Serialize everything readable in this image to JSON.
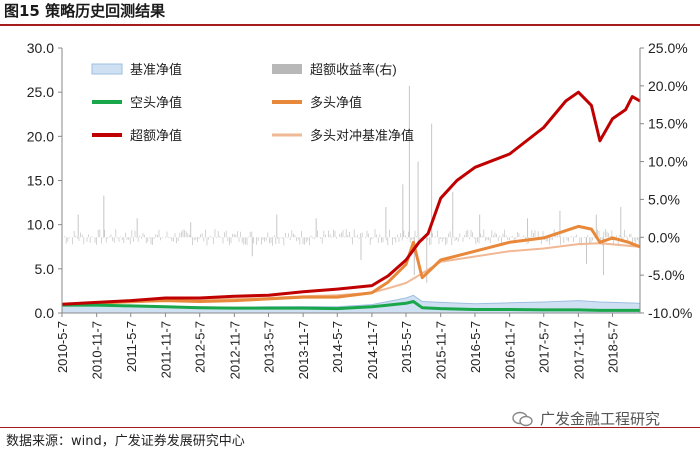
{
  "figure_title": "图15 策略历史回测结果",
  "source_note": "数据来源：wind，广发证券发展研究中心",
  "watermark": "广发金融工程研究",
  "chart_data": {
    "type": "line",
    "title": "",
    "left_axis": {
      "min": 0,
      "max": 30,
      "ticks": [
        "0.0",
        "5.0",
        "10.0",
        "15.0",
        "20.0",
        "25.0",
        "30.0"
      ]
    },
    "right_axis": {
      "min": -10,
      "max": 25,
      "ticks": [
        "-10.0%",
        "-5.0%",
        "0.0%",
        "5.0%",
        "10.0%",
        "15.0%",
        "20.0%",
        "25.0%"
      ]
    },
    "x_tick_labels": [
      "2010-5-7",
      "2010-11-7",
      "2011-5-7",
      "2011-11-7",
      "2012-5-7",
      "2012-11-7",
      "2013-5-7",
      "2013-11-7",
      "2014-5-7",
      "2014-11-7",
      "2015-5-7",
      "2015-11-7",
      "2016-5-7",
      "2016-11-7",
      "2017-5-7",
      "2017-11-7",
      "2018-5-7"
    ],
    "x_range": [
      "2010-05-07",
      "2018-09-30"
    ],
    "legend": [
      "基准净值",
      "超额收益率(右)",
      "空头净值",
      "多头净值",
      "超额净值",
      "多头对冲基准净值"
    ],
    "colors": {
      "benchmark": "#cfe0f2",
      "benchmark_edge": "#9dbfe0",
      "excess_return": "#b8b8b8",
      "short": "#1aa64a",
      "long": "#e8883a",
      "excess": "#c00000",
      "long_hedge": "#f0b894",
      "axis": "#888888"
    },
    "series": [
      {
        "name": "超额净值",
        "key": "excess",
        "axis": "left",
        "points": [
          [
            "2010-05-07",
            1.0
          ],
          [
            "2010-11-07",
            1.2
          ],
          [
            "2011-05-07",
            1.4
          ],
          [
            "2011-11-07",
            1.7
          ],
          [
            "2012-05-07",
            1.7
          ],
          [
            "2012-11-07",
            1.9
          ],
          [
            "2013-05-07",
            2.0
          ],
          [
            "2013-11-07",
            2.4
          ],
          [
            "2014-05-07",
            2.7
          ],
          [
            "2014-11-07",
            3.1
          ],
          [
            "2015-02-01",
            4.2
          ],
          [
            "2015-05-07",
            6.0
          ],
          [
            "2015-07-15",
            8.0
          ],
          [
            "2015-09-01",
            9.0
          ],
          [
            "2015-11-07",
            13.0
          ],
          [
            "2016-02-01",
            15.0
          ],
          [
            "2016-05-07",
            16.5
          ],
          [
            "2016-11-07",
            18.0
          ],
          [
            "2017-05-07",
            21.0
          ],
          [
            "2017-09-01",
            24.0
          ],
          [
            "2017-11-07",
            25.0
          ],
          [
            "2018-01-15",
            23.5
          ],
          [
            "2018-03-01",
            19.5
          ],
          [
            "2018-05-07",
            22.0
          ],
          [
            "2018-07-15",
            23.0
          ],
          [
            "2018-08-20",
            24.5
          ],
          [
            "2018-09-30",
            24.0
          ]
        ]
      },
      {
        "name": "多头净值",
        "key": "long",
        "axis": "left",
        "points": [
          [
            "2010-05-07",
            0.9
          ],
          [
            "2010-11-07",
            1.1
          ],
          [
            "2011-05-07",
            1.3
          ],
          [
            "2011-11-07",
            1.4
          ],
          [
            "2012-05-07",
            1.3
          ],
          [
            "2012-11-07",
            1.4
          ],
          [
            "2013-05-07",
            1.6
          ],
          [
            "2013-11-07",
            1.8
          ],
          [
            "2014-05-07",
            1.8
          ],
          [
            "2014-11-07",
            2.3
          ],
          [
            "2015-02-01",
            3.5
          ],
          [
            "2015-05-07",
            5.5
          ],
          [
            "2015-06-15",
            8.0
          ],
          [
            "2015-08-01",
            4.0
          ],
          [
            "2015-11-07",
            6.0
          ],
          [
            "2016-05-07",
            7.0
          ],
          [
            "2016-11-07",
            8.0
          ],
          [
            "2017-05-07",
            8.5
          ],
          [
            "2017-11-07",
            9.8
          ],
          [
            "2018-01-15",
            9.5
          ],
          [
            "2018-03-01",
            8.0
          ],
          [
            "2018-05-07",
            8.5
          ],
          [
            "2018-08-01",
            8.0
          ],
          [
            "2018-09-30",
            7.5
          ]
        ]
      },
      {
        "name": "多头对冲基准净值",
        "key": "long_hedge",
        "axis": "left",
        "points": [
          [
            "2010-05-07",
            1.0
          ],
          [
            "2010-11-07",
            1.1
          ],
          [
            "2011-05-07",
            1.2
          ],
          [
            "2011-11-07",
            1.4
          ],
          [
            "2012-05-07",
            1.5
          ],
          [
            "2012-11-07",
            1.6
          ],
          [
            "2013-05-07",
            1.7
          ],
          [
            "2013-11-07",
            1.9
          ],
          [
            "2014-05-07",
            2.0
          ],
          [
            "2014-11-07",
            2.3
          ],
          [
            "2015-02-01",
            2.8
          ],
          [
            "2015-05-07",
            3.4
          ],
          [
            "2015-08-01",
            4.5
          ],
          [
            "2015-11-07",
            5.8
          ],
          [
            "2016-05-07",
            6.4
          ],
          [
            "2016-11-07",
            7.0
          ],
          [
            "2017-05-07",
            7.3
          ],
          [
            "2017-11-07",
            7.8
          ],
          [
            "2018-03-01",
            7.9
          ],
          [
            "2018-09-30",
            7.5
          ]
        ]
      },
      {
        "name": "基准净值",
        "key": "benchmark",
        "axis": "left",
        "points": [
          [
            "2010-05-07",
            0.95
          ],
          [
            "2010-11-07",
            0.95
          ],
          [
            "2011-05-07",
            0.85
          ],
          [
            "2011-11-07",
            0.75
          ],
          [
            "2012-05-07",
            0.7
          ],
          [
            "2012-11-07",
            0.65
          ],
          [
            "2013-05-07",
            0.7
          ],
          [
            "2013-11-07",
            0.72
          ],
          [
            "2014-05-07",
            0.7
          ],
          [
            "2014-11-07",
            0.95
          ],
          [
            "2015-02-01",
            1.3
          ],
          [
            "2015-05-07",
            1.7
          ],
          [
            "2015-06-15",
            2.0
          ],
          [
            "2015-08-01",
            1.3
          ],
          [
            "2015-11-07",
            1.2
          ],
          [
            "2016-05-07",
            1.05
          ],
          [
            "2016-11-07",
            1.15
          ],
          [
            "2017-05-07",
            1.25
          ],
          [
            "2017-11-07",
            1.4
          ],
          [
            "2018-03-01",
            1.25
          ],
          [
            "2018-09-30",
            1.1
          ]
        ]
      },
      {
        "name": "空头净值",
        "key": "short",
        "axis": "left",
        "points": [
          [
            "2010-05-07",
            0.9
          ],
          [
            "2010-11-07",
            0.9
          ],
          [
            "2011-05-07",
            0.8
          ],
          [
            "2011-11-07",
            0.7
          ],
          [
            "2012-05-07",
            0.6
          ],
          [
            "2012-11-07",
            0.55
          ],
          [
            "2013-05-07",
            0.55
          ],
          [
            "2013-11-07",
            0.55
          ],
          [
            "2014-05-07",
            0.5
          ],
          [
            "2014-11-07",
            0.7
          ],
          [
            "2015-02-01",
            0.9
          ],
          [
            "2015-05-07",
            1.1
          ],
          [
            "2015-06-15",
            1.3
          ],
          [
            "2015-08-01",
            0.6
          ],
          [
            "2015-11-07",
            0.5
          ],
          [
            "2016-05-07",
            0.4
          ],
          [
            "2016-11-07",
            0.4
          ],
          [
            "2017-05-07",
            0.35
          ],
          [
            "2017-11-07",
            0.35
          ],
          [
            "2018-03-01",
            0.3
          ],
          [
            "2018-09-30",
            0.3
          ]
        ]
      }
    ],
    "excess_return_series": {
      "name": "超额收益率(右)",
      "axis": "right",
      "note": "daily excess return bars oscillating around 0%",
      "spikes_pct": [
        [
          "2010-08-01",
          3.0
        ],
        [
          "2010-12-15",
          5.5
        ],
        [
          "2011-06-10",
          2.5
        ],
        [
          "2012-03-20",
          2.0
        ],
        [
          "2013-02-10",
          -2.5
        ],
        [
          "2013-06-20",
          3.0
        ],
        [
          "2014-01-15",
          2.5
        ],
        [
          "2014-09-10",
          -3.0
        ],
        [
          "2015-01-20",
          4.0
        ],
        [
          "2015-04-20",
          7.0
        ],
        [
          "2015-05-25",
          20.0
        ],
        [
          "2015-06-20",
          -5.0
        ],
        [
          "2015-07-10",
          10.0
        ],
        [
          "2015-08-25",
          -6.0
        ],
        [
          "2015-09-20",
          15.0
        ],
        [
          "2016-01-10",
          6.0
        ],
        [
          "2016-06-01",
          3.0
        ],
        [
          "2017-02-10",
          2.5
        ],
        [
          "2017-08-01",
          3.5
        ],
        [
          "2017-12-20",
          -3.5
        ],
        [
          "2018-02-10",
          3.0
        ],
        [
          "2018-03-20",
          -5.0
        ],
        [
          "2018-06-20",
          4.0
        ]
      ]
    }
  }
}
